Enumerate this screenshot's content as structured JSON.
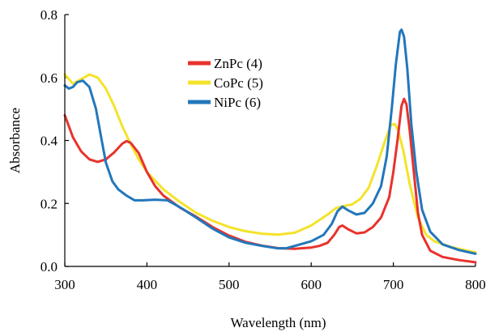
{
  "chart_data": {
    "type": "line",
    "title": "",
    "xlabel": "Wavelength (nm)",
    "ylabel": "Absorbance",
    "xlim": [
      300,
      800
    ],
    "ylim": [
      0.0,
      0.8
    ],
    "x_ticks": [
      300,
      400,
      500,
      600,
      700,
      800
    ],
    "y_ticks": [
      0.0,
      0.2,
      0.4,
      0.6,
      0.8
    ],
    "x_tick_labels": [
      "300",
      "400",
      "500",
      "600",
      "700",
      "800"
    ],
    "y_tick_labels": [
      "0.0",
      "0.2",
      "0.4",
      "0.6",
      "0.8"
    ],
    "grid": false,
    "legend_position": "top-left-center",
    "series": [
      {
        "name": "ZnPc (4)",
        "color": "#e8322d",
        "points": [
          [
            300,
            0.48
          ],
          [
            310,
            0.41
          ],
          [
            320,
            0.365
          ],
          [
            330,
            0.34
          ],
          [
            340,
            0.332
          ],
          [
            350,
            0.34
          ],
          [
            360,
            0.362
          ],
          [
            370,
            0.39
          ],
          [
            375,
            0.398
          ],
          [
            380,
            0.393
          ],
          [
            390,
            0.36
          ],
          [
            400,
            0.3
          ],
          [
            410,
            0.255
          ],
          [
            420,
            0.225
          ],
          [
            440,
            0.187
          ],
          [
            460,
            0.158
          ],
          [
            480,
            0.125
          ],
          [
            500,
            0.098
          ],
          [
            520,
            0.078
          ],
          [
            540,
            0.066
          ],
          [
            560,
            0.058
          ],
          [
            580,
            0.056
          ],
          [
            600,
            0.06
          ],
          [
            610,
            0.065
          ],
          [
            620,
            0.075
          ],
          [
            628,
            0.1
          ],
          [
            634,
            0.125
          ],
          [
            638,
            0.13
          ],
          [
            645,
            0.118
          ],
          [
            655,
            0.105
          ],
          [
            665,
            0.108
          ],
          [
            675,
            0.125
          ],
          [
            685,
            0.155
          ],
          [
            695,
            0.22
          ],
          [
            700,
            0.3
          ],
          [
            705,
            0.4
          ],
          [
            710,
            0.51
          ],
          [
            713,
            0.532
          ],
          [
            716,
            0.515
          ],
          [
            720,
            0.43
          ],
          [
            725,
            0.3
          ],
          [
            730,
            0.17
          ],
          [
            735,
            0.1
          ],
          [
            745,
            0.05
          ],
          [
            760,
            0.03
          ],
          [
            780,
            0.02
          ],
          [
            800,
            0.013
          ]
        ]
      },
      {
        "name": "CoPc (5)",
        "color": "#f4e32a",
        "points": [
          [
            300,
            0.61
          ],
          [
            310,
            0.58
          ],
          [
            320,
            0.595
          ],
          [
            330,
            0.61
          ],
          [
            340,
            0.6
          ],
          [
            350,
            0.565
          ],
          [
            360,
            0.51
          ],
          [
            370,
            0.445
          ],
          [
            380,
            0.39
          ],
          [
            390,
            0.34
          ],
          [
            400,
            0.3
          ],
          [
            420,
            0.245
          ],
          [
            440,
            0.205
          ],
          [
            460,
            0.17
          ],
          [
            480,
            0.145
          ],
          [
            500,
            0.125
          ],
          [
            520,
            0.112
          ],
          [
            540,
            0.104
          ],
          [
            560,
            0.101
          ],
          [
            580,
            0.107
          ],
          [
            600,
            0.13
          ],
          [
            620,
            0.165
          ],
          [
            630,
            0.185
          ],
          [
            640,
            0.192
          ],
          [
            650,
            0.197
          ],
          [
            660,
            0.215
          ],
          [
            670,
            0.25
          ],
          [
            680,
            0.32
          ],
          [
            690,
            0.4
          ],
          [
            697,
            0.45
          ],
          [
            702,
            0.452
          ],
          [
            706,
            0.43
          ],
          [
            712,
            0.37
          ],
          [
            720,
            0.26
          ],
          [
            730,
            0.155
          ],
          [
            740,
            0.1
          ],
          [
            750,
            0.08
          ],
          [
            770,
            0.062
          ],
          [
            790,
            0.05
          ],
          [
            800,
            0.045
          ]
        ]
      },
      {
        "name": "NiPc (6)",
        "color": "#2277bb",
        "points": [
          [
            300,
            0.575
          ],
          [
            305,
            0.565
          ],
          [
            310,
            0.57
          ],
          [
            315,
            0.585
          ],
          [
            322,
            0.59
          ],
          [
            330,
            0.57
          ],
          [
            338,
            0.5
          ],
          [
            345,
            0.4
          ],
          [
            350,
            0.33
          ],
          [
            358,
            0.27
          ],
          [
            365,
            0.245
          ],
          [
            375,
            0.225
          ],
          [
            385,
            0.21
          ],
          [
            395,
            0.21
          ],
          [
            410,
            0.212
          ],
          [
            425,
            0.21
          ],
          [
            440,
            0.188
          ],
          [
            460,
            0.155
          ],
          [
            480,
            0.12
          ],
          [
            500,
            0.092
          ],
          [
            520,
            0.075
          ],
          [
            540,
            0.065
          ],
          [
            560,
            0.057
          ],
          [
            570,
            0.058
          ],
          [
            580,
            0.065
          ],
          [
            600,
            0.08
          ],
          [
            615,
            0.1
          ],
          [
            625,
            0.135
          ],
          [
            632,
            0.175
          ],
          [
            638,
            0.19
          ],
          [
            645,
            0.178
          ],
          [
            655,
            0.165
          ],
          [
            665,
            0.17
          ],
          [
            675,
            0.2
          ],
          [
            685,
            0.255
          ],
          [
            692,
            0.35
          ],
          [
            698,
            0.5
          ],
          [
            703,
            0.64
          ],
          [
            708,
            0.745
          ],
          [
            710,
            0.752
          ],
          [
            713,
            0.73
          ],
          [
            717,
            0.63
          ],
          [
            722,
            0.45
          ],
          [
            728,
            0.3
          ],
          [
            735,
            0.18
          ],
          [
            745,
            0.11
          ],
          [
            760,
            0.07
          ],
          [
            780,
            0.052
          ],
          [
            800,
            0.04
          ]
        ]
      }
    ]
  }
}
